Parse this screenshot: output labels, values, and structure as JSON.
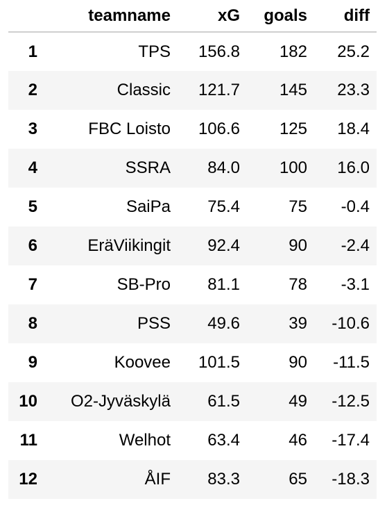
{
  "table": {
    "columns": [
      "",
      "teamname",
      "xG",
      "goals",
      "diff"
    ],
    "rows": [
      {
        "index": "1",
        "teamname": "TPS",
        "xG": "156.8",
        "goals": "182",
        "diff": "25.2"
      },
      {
        "index": "2",
        "teamname": "Classic",
        "xG": "121.7",
        "goals": "145",
        "diff": "23.3"
      },
      {
        "index": "3",
        "teamname": "FBC Loisto",
        "xG": "106.6",
        "goals": "125",
        "diff": "18.4"
      },
      {
        "index": "4",
        "teamname": "SSRA",
        "xG": "84.0",
        "goals": "100",
        "diff": "16.0"
      },
      {
        "index": "5",
        "teamname": "SaiPa",
        "xG": "75.4",
        "goals": "75",
        "diff": "-0.4"
      },
      {
        "index": "6",
        "teamname": "EräViikingit",
        "xG": "92.4",
        "goals": "90",
        "diff": "-2.4"
      },
      {
        "index": "7",
        "teamname": "SB-Pro",
        "xG": "81.1",
        "goals": "78",
        "diff": "-3.1"
      },
      {
        "index": "8",
        "teamname": "PSS",
        "xG": "49.6",
        "goals": "39",
        "diff": "-10.6"
      },
      {
        "index": "9",
        "teamname": "Koovee",
        "xG": "101.5",
        "goals": "90",
        "diff": "-11.5"
      },
      {
        "index": "10",
        "teamname": "O2-Jyväskylä",
        "xG": "61.5",
        "goals": "49",
        "diff": "-12.5"
      },
      {
        "index": "11",
        "teamname": "Welhot",
        "xG": "63.4",
        "goals": "46",
        "diff": "-17.4"
      },
      {
        "index": "12",
        "teamname": "ÅIF",
        "xG": "83.3",
        "goals": "65",
        "diff": "-18.3"
      }
    ]
  }
}
